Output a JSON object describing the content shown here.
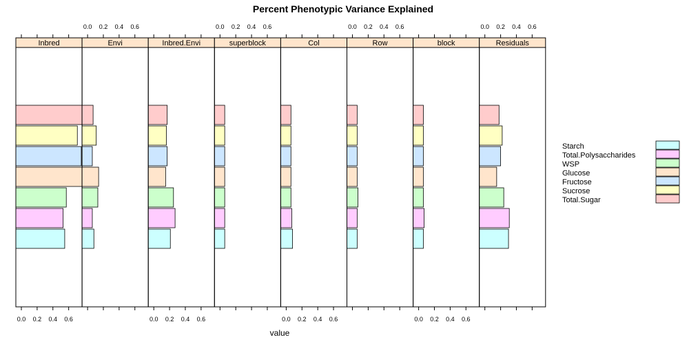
{
  "chart_data": {
    "type": "bar",
    "orientation": "horizontal",
    "title": "Percent Phenotypic Variance Explained",
    "xlabel": "value",
    "ylabel": "",
    "xlim": [
      -0.07,
      0.77
    ],
    "x_ticks": [
      0.0,
      0.2,
      0.4,
      0.6
    ],
    "x_tick_labels": [
      "0.0",
      "0.2",
      "0.4",
      "0.6"
    ],
    "legend_position": "right",
    "panels": [
      "Inbred",
      "Envi",
      "Inbred.Envi",
      "superblock",
      "Col",
      "Row",
      "block",
      "Residuals"
    ],
    "categories_top_to_bottom": [
      "Total.Sugar",
      "Sucrose",
      "Fructose",
      "Glucose",
      "WSP",
      "Total.Polysaccharides",
      "Starch"
    ],
    "series": [
      {
        "name": "Total.Sugar",
        "color": "#ffcccc",
        "values": [
          0.77,
          0.07,
          0.17,
          0.06,
          0.06,
          0.06,
          0.06,
          0.18
        ]
      },
      {
        "name": "Sucrose",
        "color": "#ffffc3",
        "values": [
          0.71,
          0.11,
          0.16,
          0.06,
          0.06,
          0.06,
          0.06,
          0.22
        ]
      },
      {
        "name": "Fructose",
        "color": "#cce6ff",
        "values": [
          0.76,
          0.06,
          0.17,
          0.06,
          0.06,
          0.06,
          0.06,
          0.2
        ]
      },
      {
        "name": "Glucose",
        "color": "#ffe5cc",
        "values": [
          0.77,
          0.14,
          0.15,
          0.06,
          0.06,
          0.06,
          0.06,
          0.15
        ]
      },
      {
        "name": "WSP",
        "color": "#ccffcc",
        "values": [
          0.57,
          0.13,
          0.25,
          0.06,
          0.06,
          0.07,
          0.06,
          0.24
        ]
      },
      {
        "name": "Total.Polysaccharides",
        "color": "#ffccff",
        "values": [
          0.53,
          0.06,
          0.27,
          0.06,
          0.07,
          0.06,
          0.07,
          0.31
        ]
      },
      {
        "name": "Starch",
        "color": "#ccffff",
        "values": [
          0.55,
          0.08,
          0.21,
          0.06,
          0.08,
          0.06,
          0.06,
          0.3
        ]
      }
    ],
    "legend_order": [
      "Starch",
      "Total.Polysaccharides",
      "WSP",
      "Glucose",
      "Fructose",
      "Sucrose",
      "Total.Sugar"
    ]
  }
}
